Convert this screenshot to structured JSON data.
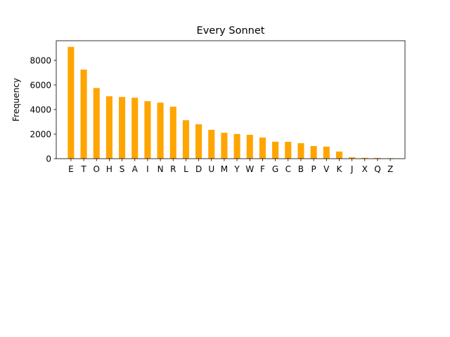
{
  "chart_data": {
    "type": "bar",
    "title": "Every Sonnet",
    "xlabel": "",
    "ylabel": "Frequency",
    "categories": [
      "E",
      "T",
      "O",
      "H",
      "S",
      "A",
      "I",
      "N",
      "R",
      "L",
      "D",
      "U",
      "M",
      "Y",
      "W",
      "F",
      "G",
      "C",
      "B",
      "P",
      "V",
      "K",
      "J",
      "X",
      "Q",
      "Z"
    ],
    "values": [
      9100,
      7250,
      5750,
      5080,
      5020,
      4960,
      4680,
      4560,
      4230,
      3130,
      2800,
      2350,
      2110,
      2010,
      1940,
      1720,
      1380,
      1370,
      1260,
      1030,
      980,
      580,
      110,
      65,
      60,
      40
    ],
    "ylim": [
      0,
      9600
    ],
    "yticks": [
      0,
      2000,
      4000,
      6000,
      8000
    ],
    "bar_color": "#ffa500",
    "grid": false,
    "legend": "none"
  }
}
